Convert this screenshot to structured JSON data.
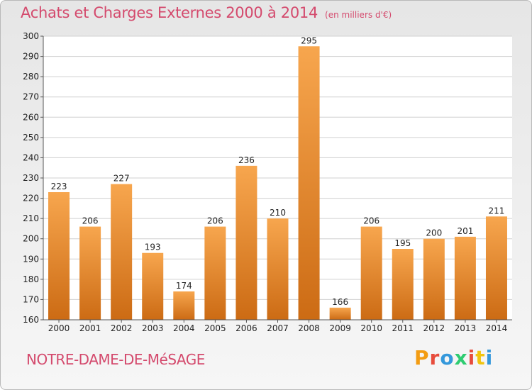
{
  "header": {
    "title": "Achats et Charges Externes 2000 à 2014",
    "subtitle": "(en milliers d'€)"
  },
  "footer": {
    "place": "NOTRE-DAME-DE-MéSAGE"
  },
  "logo": {
    "letters": [
      "P",
      "r",
      "o",
      "x",
      "i",
      "t",
      "i"
    ],
    "colors": [
      "#f39c12",
      "#e74c3c",
      "#3498db",
      "#2ecc71",
      "#e74c3c",
      "#f1c40f",
      "#3498db"
    ]
  },
  "colors": {
    "bar_top": "#f7a64e",
    "bar_bottom": "#cc6b14",
    "title": "#d44a6d",
    "grid": "#d0d0d0"
  },
  "chart_data": {
    "type": "bar",
    "title": "Achats et Charges Externes 2000 à 2014",
    "subtitle": "(en milliers d'€)",
    "categories": [
      "2000",
      "2001",
      "2002",
      "2003",
      "2004",
      "2005",
      "2006",
      "2007",
      "2008",
      "2009",
      "2010",
      "2011",
      "2012",
      "2013",
      "2014"
    ],
    "values": [
      223,
      206,
      227,
      193,
      174,
      206,
      236,
      210,
      295,
      166,
      206,
      195,
      200,
      201,
      211
    ],
    "xlabel": "",
    "ylabel": "",
    "ylim": [
      160,
      300
    ],
    "yticks": [
      160,
      170,
      180,
      190,
      200,
      210,
      220,
      230,
      240,
      250,
      260,
      270,
      280,
      290,
      300
    ],
    "grid": true,
    "legend": "none"
  }
}
